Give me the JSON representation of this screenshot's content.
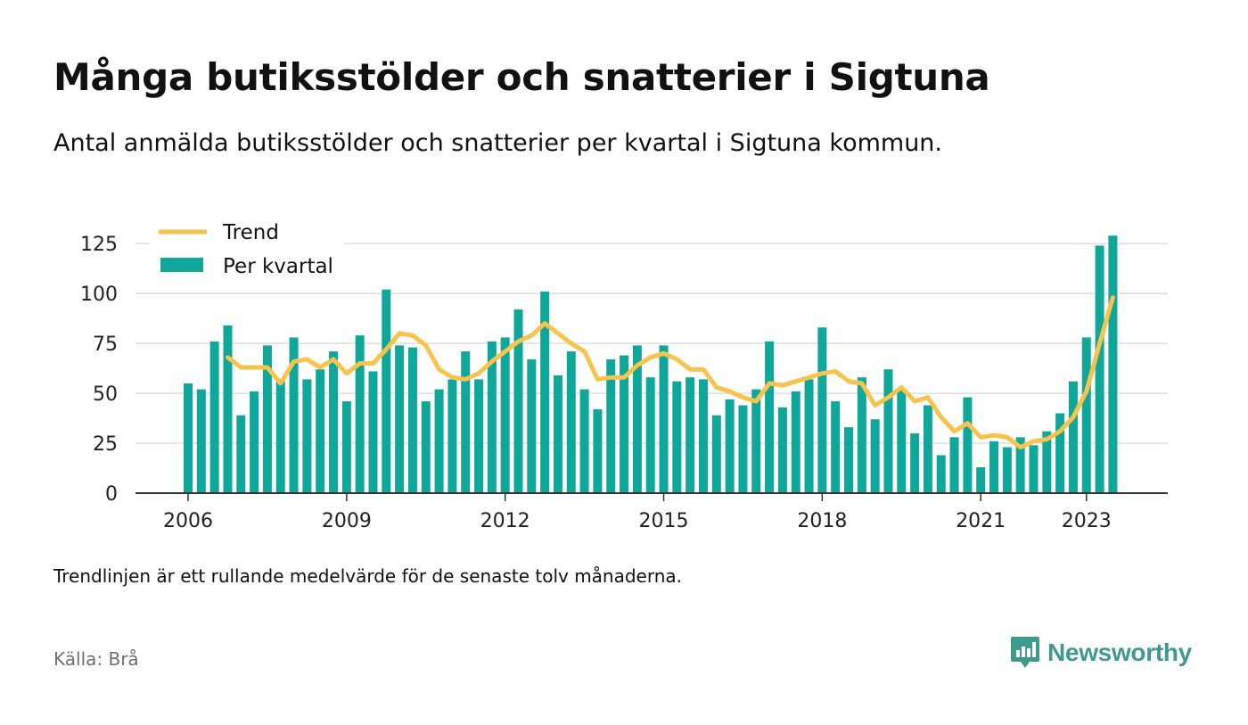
{
  "title": "Många butiksstölder och snatterier i Sigtuna",
  "subtitle": "Antal anmälda butiksstölder och snatterier per kvartal i Sigtuna kommun.",
  "note": "Trendlinjen är ett rullande medelvärde för de senaste tolv månaderna.",
  "source": "Källa: Brå",
  "brand": {
    "name": "Newsworthy",
    "icon": "newsworthy-logo-icon"
  },
  "colors": {
    "bar": "#0fa799",
    "trend": "#f7c34b",
    "grid": "#dddddd",
    "axis": "#333333",
    "brand": "#3e9a8e"
  },
  "chart_data": {
    "type": "bar",
    "legend": [
      "Trend",
      "Per kvartal"
    ],
    "legend_position": "top-left",
    "grid": true,
    "ylim": [
      0,
      130
    ],
    "yticks": [
      0,
      25,
      50,
      75,
      100,
      125
    ],
    "xticks": [
      "2006",
      "2009",
      "2012",
      "2015",
      "2018",
      "2021",
      "2023"
    ],
    "xticks_at": [
      0,
      12,
      24,
      36,
      48,
      60,
      68
    ],
    "series": [
      {
        "name": "Per kvartal",
        "type": "bar",
        "values": [
          55,
          52,
          76,
          84,
          39,
          51,
          74,
          56,
          78,
          57,
          62,
          71,
          46,
          79,
          61,
          102,
          74,
          73,
          46,
          52,
          57,
          71,
          57,
          76,
          78,
          92,
          67,
          101,
          59,
          71,
          52,
          42,
          67,
          69,
          74,
          58,
          74,
          56,
          58,
          57,
          39,
          47,
          44,
          52,
          76,
          43,
          51,
          57,
          83,
          46,
          33,
          58,
          37,
          62,
          52,
          30,
          44,
          19,
          28,
          48,
          13,
          26,
          23,
          28,
          24,
          31,
          40,
          56,
          78,
          124,
          129
        ]
      },
      {
        "name": "Trend",
        "type": "line",
        "start_index": 3,
        "values": [
          68,
          63,
          63,
          63,
          55,
          66,
          67,
          63,
          67,
          60,
          65,
          65,
          72,
          80,
          79,
          74,
          62,
          58,
          57,
          60,
          66,
          71,
          76,
          79,
          85,
          80,
          75,
          71,
          57,
          58,
          58,
          64,
          68,
          70,
          67,
          62,
          62,
          53,
          51,
          48,
          46,
          55,
          54,
          56,
          58,
          60,
          61,
          56,
          55,
          44,
          48,
          53,
          46,
          48,
          38,
          31,
          35,
          28,
          29,
          28,
          23,
          26,
          27,
          31,
          38,
          51,
          75,
          98
        ]
      }
    ]
  }
}
